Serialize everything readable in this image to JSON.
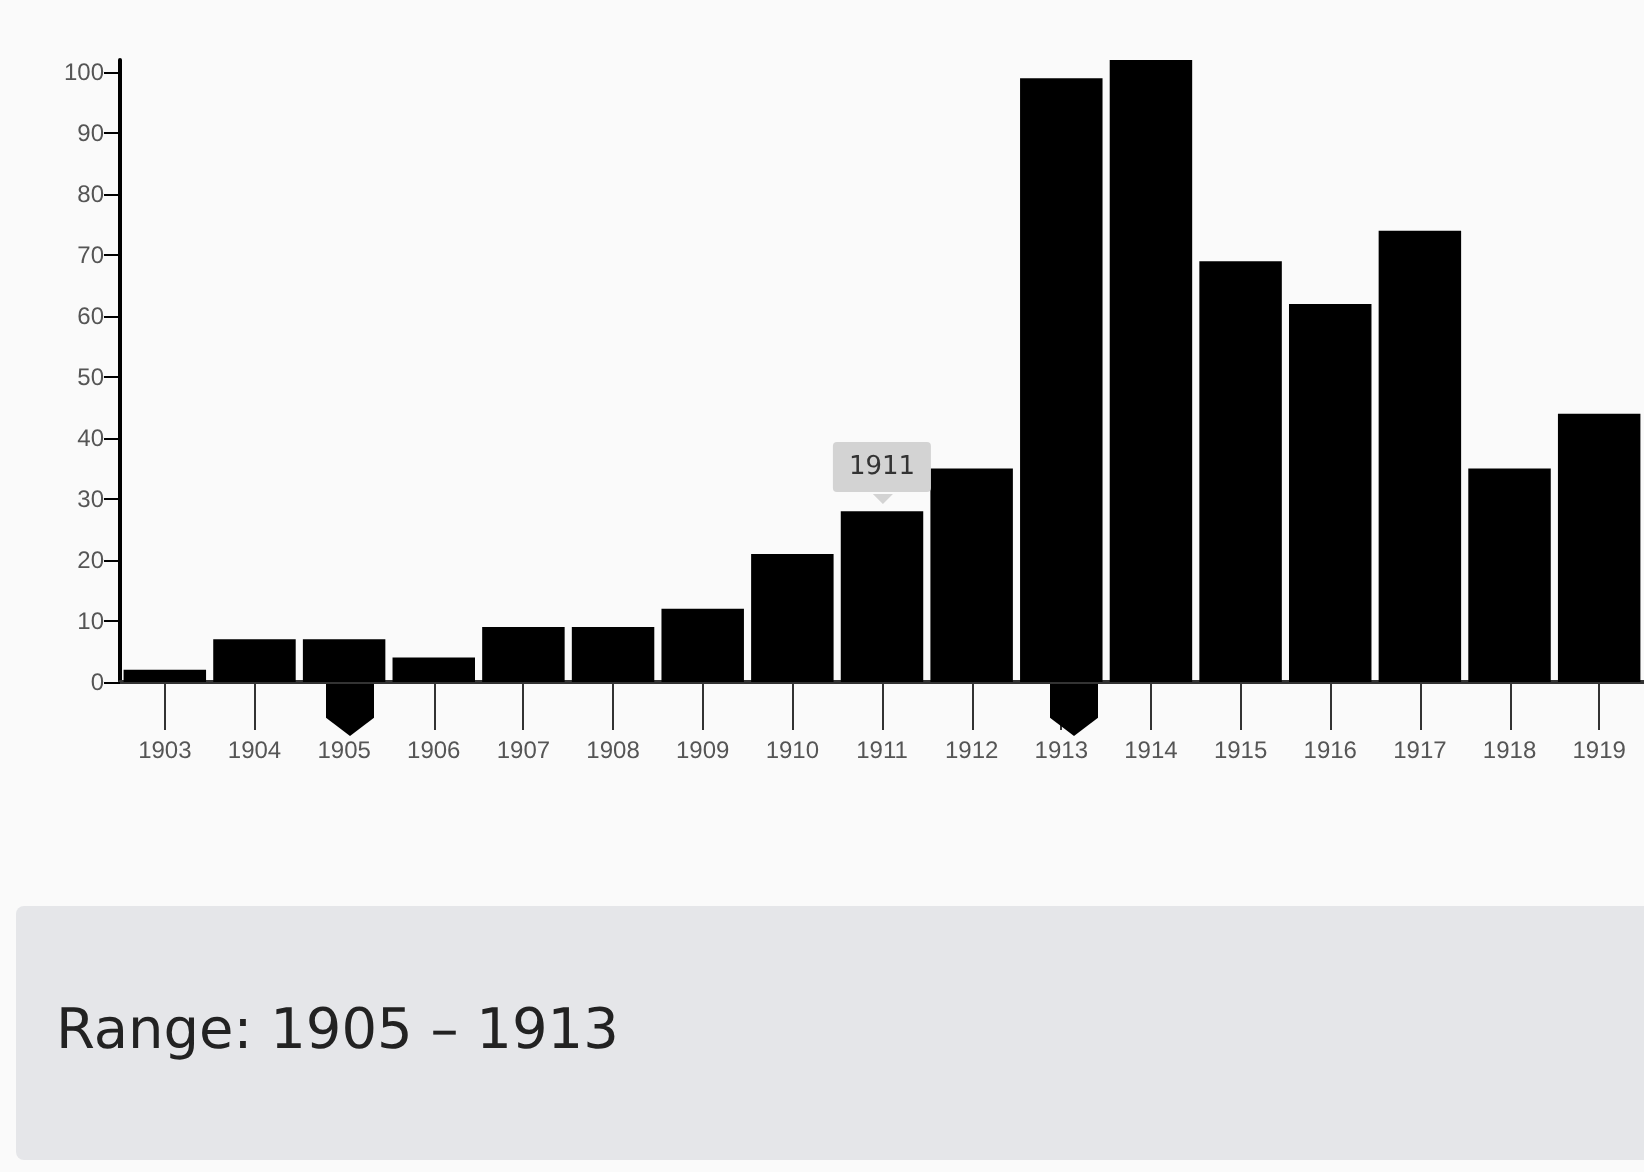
{
  "chart_data": {
    "type": "bar",
    "categories": [
      "1903",
      "1904",
      "1905",
      "1906",
      "1907",
      "1908",
      "1909",
      "1910",
      "1911",
      "1912",
      "1913",
      "1914",
      "1915",
      "1916",
      "1917",
      "1918",
      "1919"
    ],
    "values": [
      2,
      7,
      7,
      4,
      9,
      9,
      12,
      21,
      28,
      35,
      99,
      102,
      69,
      62,
      74,
      35,
      44
    ],
    "color": "#000000",
    "ylim": [
      0,
      102
    ],
    "yticks": [
      0,
      10,
      20,
      30,
      40,
      50,
      60,
      70,
      80,
      90,
      100
    ],
    "grid": false,
    "annotations": [
      {
        "text": "1911",
        "x": "1911",
        "y": 28
      },
      "Range: 1905 – 1913"
    ]
  }
}
